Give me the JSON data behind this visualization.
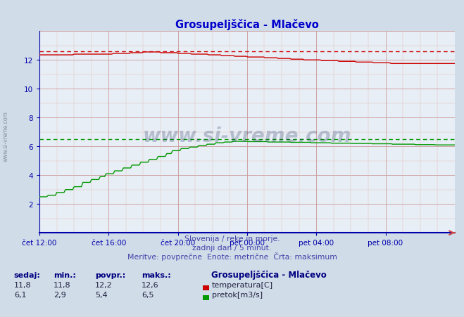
{
  "title": "Grosupeljščica - Mlačevo",
  "title_color": "#0000cc",
  "bg_color": "#d0dce8",
  "plot_bg_color": "#e8eef5",
  "axis_color": "#0000aa",
  "text_color": "#4444aa",
  "xlabel_ticks": [
    "čet 12:00",
    "čet 16:00",
    "čet 20:00",
    "pet 00:00",
    "pet 04:00",
    "pet 08:00"
  ],
  "ylim": [
    0,
    14
  ],
  "yticks": [
    2,
    4,
    6,
    8,
    10,
    12
  ],
  "temp_color": "#cc0000",
  "flow_color": "#009900",
  "temp_max_line": 12.6,
  "flow_avg_line": 6.5,
  "subtitle1": "Slovenija / reke in morje.",
  "subtitle2": "zadnji dan / 5 minut.",
  "subtitle3": "Meritve: povprečne  Enote: metrične  Črta: maksimum",
  "legend_title": "Grosupeljščica - Mlačevo",
  "col_headers": [
    "sedaj:",
    "min.:",
    "povpr.:",
    "maks.:"
  ],
  "temp_row": [
    "11,8",
    "11,8",
    "12,2",
    "12,6"
  ],
  "flow_row": [
    "6,1",
    "2,9",
    "5,4",
    "6,5"
  ],
  "temp_label": "temperatura[C]",
  "flow_label": "pretok[m3/s]",
  "n_points": 288
}
